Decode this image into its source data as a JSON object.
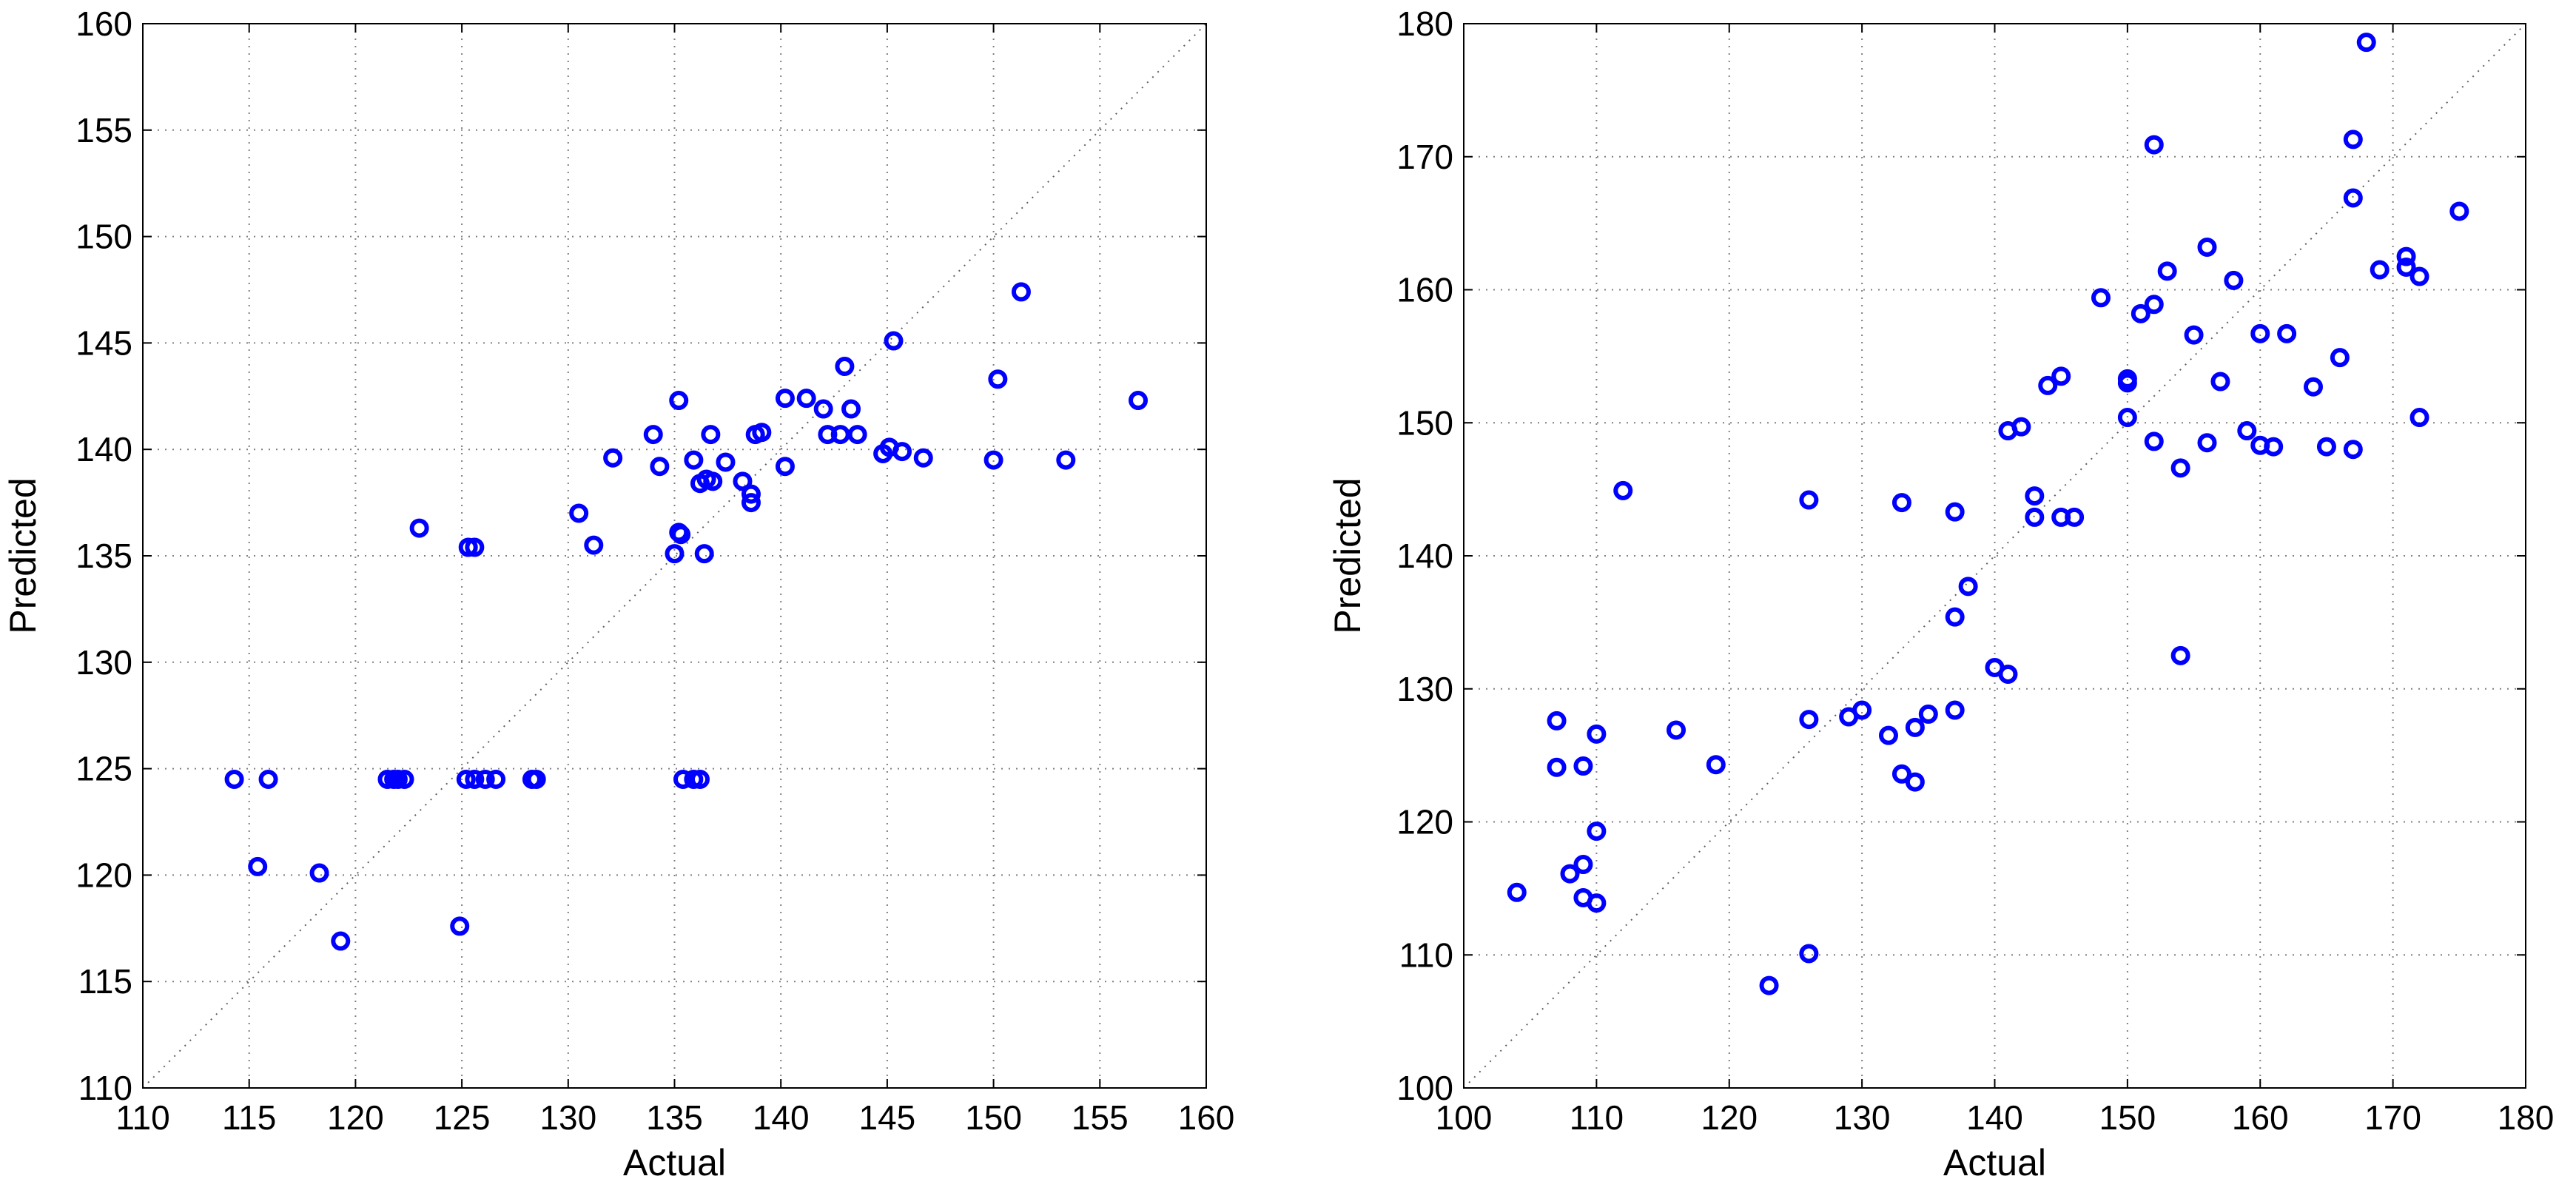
{
  "marker_color": "#0000ff",
  "chart_data": [
    {
      "type": "scatter",
      "xlabel": "Actual",
      "ylabel": "Predicted",
      "xlim": [
        110,
        160
      ],
      "ylim": [
        110,
        160
      ],
      "xticks": [
        110,
        115,
        120,
        125,
        130,
        135,
        140,
        145,
        150,
        155,
        160
      ],
      "yticks": [
        110,
        115,
        120,
        125,
        130,
        135,
        140,
        145,
        150,
        155,
        160
      ],
      "grid": true,
      "reference_line": "y = x",
      "points": [
        [
          114.3,
          124.5
        ],
        [
          115.9,
          124.5
        ],
        [
          115.4,
          120.4
        ],
        [
          118.3,
          120.1
        ],
        [
          119.3,
          116.9
        ],
        [
          121.5,
          124.5
        ],
        [
          121.8,
          124.5
        ],
        [
          122.0,
          124.5
        ],
        [
          122.3,
          124.5
        ],
        [
          123.0,
          136.3
        ],
        [
          124.9,
          117.6
        ],
        [
          125.2,
          124.5
        ],
        [
          125.6,
          124.5
        ],
        [
          126.1,
          124.5
        ],
        [
          126.6,
          124.5
        ],
        [
          128.3,
          124.5
        ],
        [
          128.5,
          124.5
        ],
        [
          125.3,
          135.4
        ],
        [
          125.6,
          135.4
        ],
        [
          130.5,
          137.0
        ],
        [
          131.2,
          135.5
        ],
        [
          132.1,
          139.6
        ],
        [
          134.0,
          140.7
        ],
        [
          134.3,
          139.2
        ],
        [
          135.0,
          135.1
        ],
        [
          135.2,
          136.1
        ],
        [
          135.3,
          136.0
        ],
        [
          135.2,
          142.3
        ],
        [
          135.4,
          124.5
        ],
        [
          135.9,
          124.5
        ],
        [
          136.2,
          124.5
        ],
        [
          135.9,
          139.5
        ],
        [
          136.2,
          138.4
        ],
        [
          136.5,
          138.6
        ],
        [
          136.8,
          138.5
        ],
        [
          136.4,
          135.1
        ],
        [
          136.7,
          140.7
        ],
        [
          137.4,
          139.4
        ],
        [
          138.2,
          138.5
        ],
        [
          138.6,
          137.9
        ],
        [
          138.6,
          137.5
        ],
        [
          138.8,
          140.7
        ],
        [
          139.1,
          140.8
        ],
        [
          140.2,
          139.2
        ],
        [
          140.2,
          142.4
        ],
        [
          141.2,
          142.4
        ],
        [
          142.0,
          141.9
        ],
        [
          142.2,
          140.7
        ],
        [
          142.8,
          140.7
        ],
        [
          143.0,
          143.9
        ],
        [
          143.3,
          141.9
        ],
        [
          143.6,
          140.7
        ],
        [
          144.8,
          139.8
        ],
        [
          145.1,
          140.1
        ],
        [
          145.3,
          145.1
        ],
        [
          145.7,
          139.9
        ],
        [
          146.7,
          139.6
        ],
        [
          150.0,
          139.5
        ],
        [
          150.2,
          143.3
        ],
        [
          151.3,
          147.4
        ],
        [
          153.4,
          139.5
        ],
        [
          156.8,
          142.3
        ]
      ]
    },
    {
      "type": "scatter",
      "xlabel": "Actual",
      "ylabel": "Predicted",
      "xlim": [
        100,
        180
      ],
      "ylim": [
        100,
        180
      ],
      "xticks": [
        100,
        110,
        120,
        130,
        140,
        150,
        160,
        170,
        180
      ],
      "yticks": [
        100,
        110,
        120,
        130,
        140,
        150,
        160,
        170,
        180
      ],
      "grid": true,
      "reference_line": "y = x",
      "points": [
        [
          104,
          114.7
        ],
        [
          107,
          127.6
        ],
        [
          107,
          124.1
        ],
        [
          108,
          116.1
        ],
        [
          109,
          124.2
        ],
        [
          109,
          116.8
        ],
        [
          109,
          114.3
        ],
        [
          110,
          126.6
        ],
        [
          110,
          119.3
        ],
        [
          110,
          113.9
        ],
        [
          112,
          144.9
        ],
        [
          116,
          126.9
        ],
        [
          119,
          124.3
        ],
        [
          123,
          107.7
        ],
        [
          126,
          144.2
        ],
        [
          126,
          127.7
        ],
        [
          126,
          110.1
        ],
        [
          129,
          127.9
        ],
        [
          130,
          128.4
        ],
        [
          132,
          126.5
        ],
        [
          133,
          144.0
        ],
        [
          133,
          123.6
        ],
        [
          134,
          127.1
        ],
        [
          134,
          123.0
        ],
        [
          135,
          128.1
        ],
        [
          137,
          143.3
        ],
        [
          137,
          135.4
        ],
        [
          137,
          128.4
        ],
        [
          138,
          137.7
        ],
        [
          140,
          131.6
        ],
        [
          141,
          149.4
        ],
        [
          141,
          131.1
        ],
        [
          142,
          149.7
        ],
        [
          143,
          144.5
        ],
        [
          143,
          142.9
        ],
        [
          144,
          152.8
        ],
        [
          145,
          153.5
        ],
        [
          145,
          142.9
        ],
        [
          146,
          142.9
        ],
        [
          148,
          159.4
        ],
        [
          150,
          153.3
        ],
        [
          150,
          153.0
        ],
        [
          150,
          150.4
        ],
        [
          151,
          158.2
        ],
        [
          152,
          170.9
        ],
        [
          152,
          158.9
        ],
        [
          152,
          148.6
        ],
        [
          153,
          161.4
        ],
        [
          154,
          146.6
        ],
        [
          154,
          132.5
        ],
        [
          155,
          156.6
        ],
        [
          156,
          163.2
        ],
        [
          156,
          148.5
        ],
        [
          157,
          153.1
        ],
        [
          158,
          160.7
        ],
        [
          159,
          149.4
        ],
        [
          160,
          156.7
        ],
        [
          160,
          148.3
        ],
        [
          161,
          148.2
        ],
        [
          162,
          156.7
        ],
        [
          164,
          152.7
        ],
        [
          165,
          148.2
        ],
        [
          166,
          154.9
        ],
        [
          167,
          171.3
        ],
        [
          167,
          166.9
        ],
        [
          167,
          148.0
        ],
        [
          168,
          178.6
        ],
        [
          169,
          161.5
        ],
        [
          171,
          162.5
        ],
        [
          171,
          161.7
        ],
        [
          172,
          161.0
        ],
        [
          172,
          150.4
        ],
        [
          175,
          165.9
        ]
      ]
    }
  ]
}
